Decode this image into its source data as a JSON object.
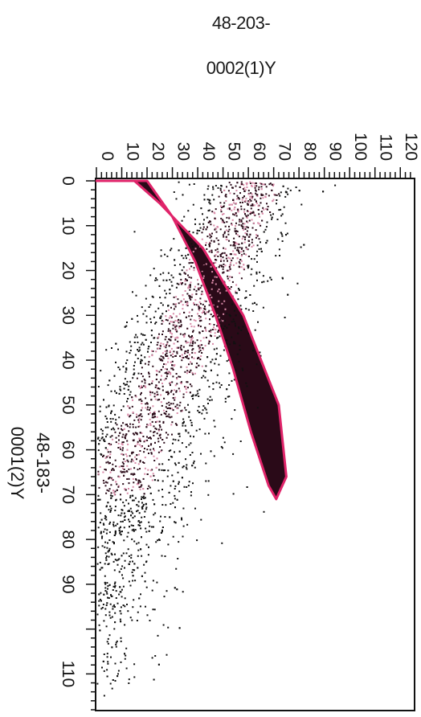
{
  "chart_data": {
    "type": "scatter",
    "title_lines": [
      "48-203-",
      "0002(1)Y"
    ],
    "x_axis": {
      "label_lines": [
        "48-183-",
        "0001(2)Y"
      ],
      "min": 0,
      "max": 118,
      "ticks": [
        0,
        10,
        20,
        30,
        40,
        50,
        60,
        70,
        80,
        90,
        110
      ]
    },
    "y_axis": {
      "min": 0,
      "max": 125,
      "ticks": [
        0,
        10,
        20,
        30,
        40,
        50,
        60,
        70,
        80,
        90,
        100,
        110,
        120
      ]
    },
    "orientation": "rotated 90° clockwise",
    "gate": {
      "type": "ellipse",
      "color": "#e0246a",
      "outline": [
        [
          0,
          0
        ],
        [
          0,
          20
        ],
        [
          8,
          30
        ],
        [
          18,
          39
        ],
        [
          30,
          47
        ],
        [
          42,
          54
        ],
        [
          56,
          61
        ],
        [
          68,
          68
        ],
        [
          71,
          71
        ],
        [
          66,
          75
        ],
        [
          50,
          72
        ],
        [
          30,
          58
        ],
        [
          15,
          42
        ],
        [
          5,
          25
        ],
        [
          0,
          15
        ]
      ]
    },
    "colors": {
      "dense": "#2a0a18",
      "gated_highlight": "#d98aa8",
      "sparse_point": "#111111",
      "gate_outline": "#e0246a"
    }
  }
}
